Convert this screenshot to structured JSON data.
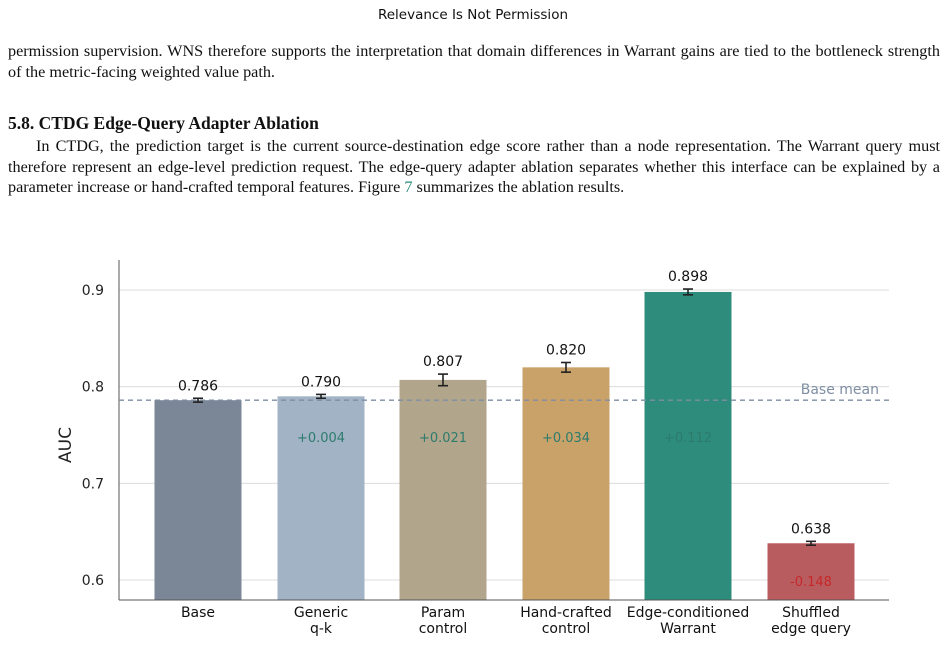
{
  "running_header": "Relevance Is Not Permission",
  "para1": "permission supervision. WNS therefore supports the interpretation that domain differences in Warrant gains are tied to the bottleneck strength of the metric-facing weighted value path.",
  "section_heading": "5.8. CTDG Edge-Query Adapter Ablation",
  "para2_before": "In CTDG, the prediction target is the current source-destination edge score rather than a node representation. The Warrant query must therefore represent an edge-level prediction request. The edge-query adapter ablation separates whether this interface can be explained by a parameter increase or hand-crafted temporal features. Figure ",
  "para2_ref": "7",
  "para2_after": " summarizes the ablation results.",
  "chart_data": {
    "type": "bar",
    "categories": [
      [
        "Base"
      ],
      [
        "Generic",
        "q-k"
      ],
      [
        "Param",
        "control"
      ],
      [
        "Hand-crafted",
        "control"
      ],
      [
        "Edge-conditioned",
        "Warrant"
      ],
      [
        "Shuffled",
        "edge query"
      ]
    ],
    "values": [
      0.786,
      0.79,
      0.807,
      0.82,
      0.898,
      0.638
    ],
    "errors": [
      0.002,
      0.002,
      0.006,
      0.005,
      0.003,
      0.002
    ],
    "value_labels": [
      "0.786",
      "0.790",
      "0.807",
      "0.820",
      "0.898",
      "0.638"
    ],
    "delta_labels": [
      "",
      "+0.004",
      "+0.021",
      "+0.034",
      "+0.112",
      "-0.148"
    ],
    "colors": [
      "#7b8797",
      "#a2b3c6",
      "#b1a58c",
      "#c9a26a",
      "#2d8c7c",
      "#b95c60"
    ],
    "delta_colors": [
      "",
      "#2d7b6c",
      "#2d7b6c",
      "#2d7b6c",
      "#2d7b6c",
      "#c62828"
    ],
    "ylabel": "AUC",
    "ylim": [
      0.58,
      0.93
    ],
    "yticks": [
      0.6,
      0.7,
      0.8,
      0.9
    ],
    "ytick_labels": [
      "0.6",
      "0.7",
      "0.8",
      "0.9"
    ],
    "reference_line": {
      "value": 0.786,
      "label": "Base mean"
    },
    "grid": true
  }
}
